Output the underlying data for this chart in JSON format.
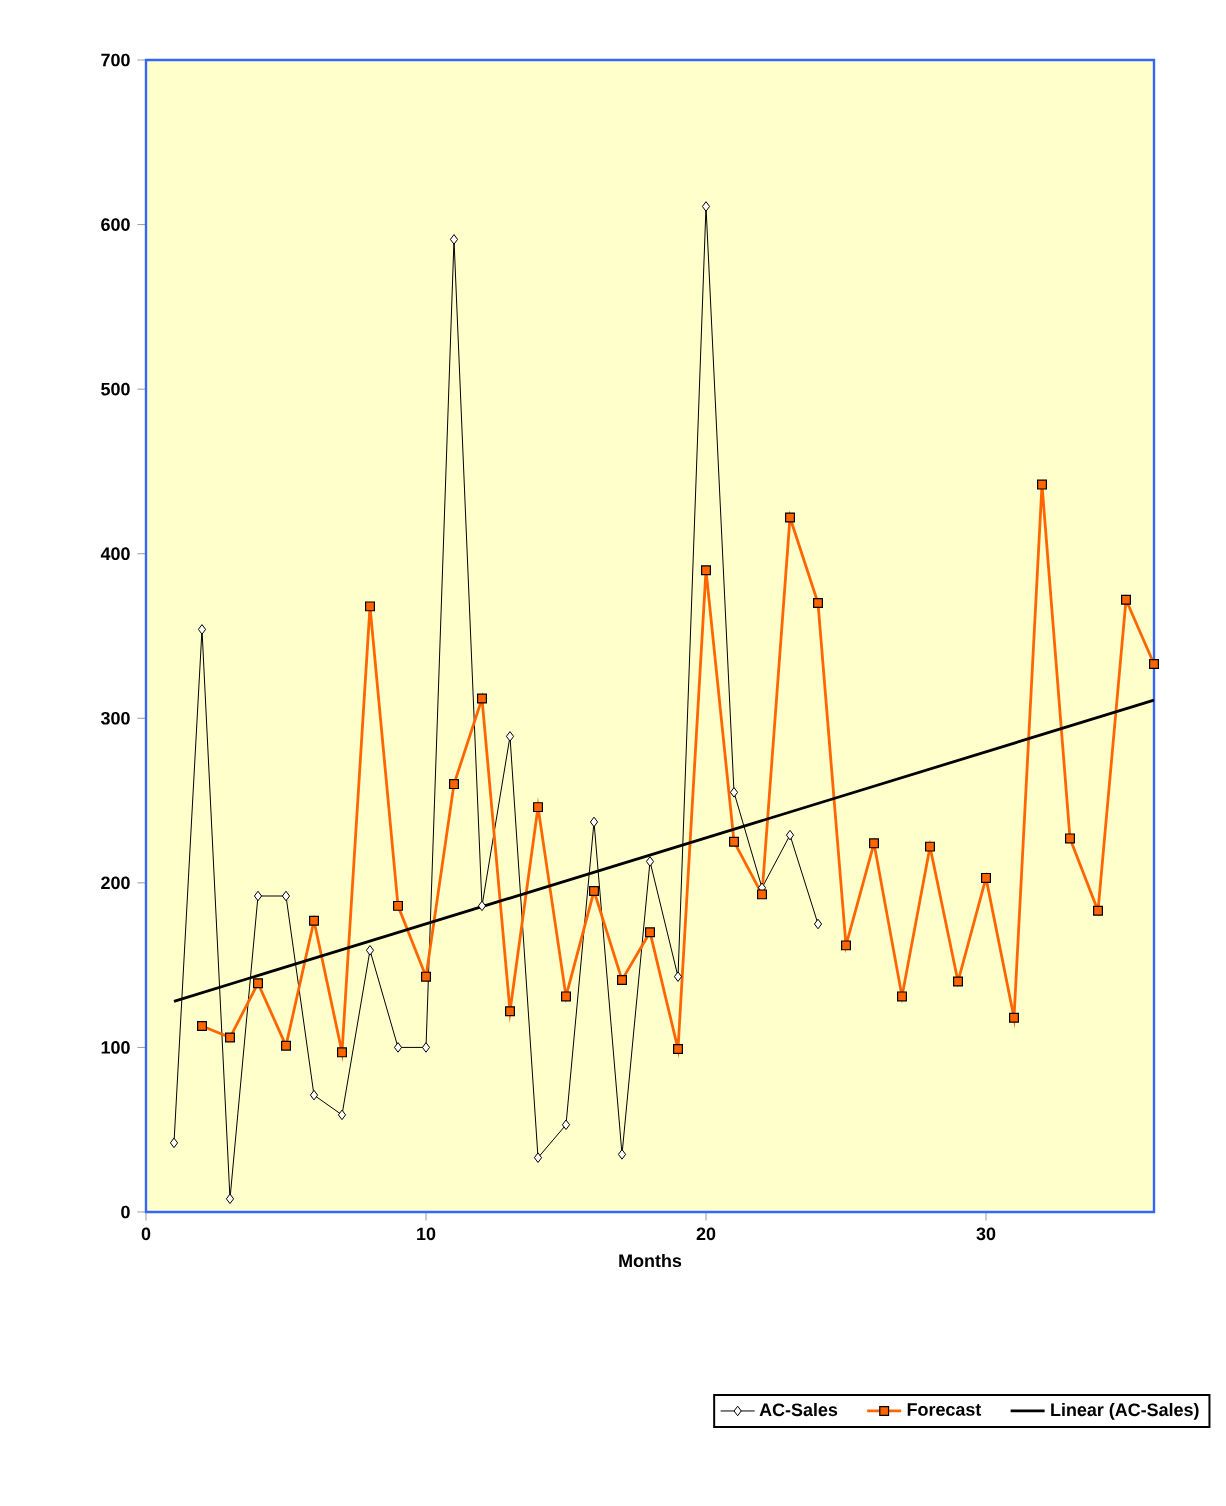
{
  "chart_data": {
    "type": "line",
    "xlabel": "Months",
    "xlim": [
      0,
      36
    ],
    "xticks": [
      0,
      10,
      20,
      30
    ],
    "ylim": [
      0,
      700
    ],
    "yticks": [
      0,
      100,
      200,
      300,
      400,
      500,
      600,
      700
    ],
    "grid": false,
    "legend": "bottom",
    "series": [
      {
        "name": "AC-Sales",
        "color": "#000000",
        "marker": "diamond",
        "x": [
          1,
          2,
          3,
          4,
          5,
          6,
          7,
          8,
          9,
          10,
          11,
          12,
          13,
          14,
          15,
          16,
          17,
          18,
          19,
          20,
          21,
          22,
          23,
          24
        ],
        "values": [
          42,
          354,
          8,
          192,
          192,
          71,
          59,
          159,
          100,
          100,
          591,
          186,
          289,
          33,
          53,
          237,
          35,
          213,
          143,
          611,
          255,
          197,
          229,
          175
        ]
      },
      {
        "name": "Forecast",
        "color": "#ff6600",
        "marker": "square",
        "x": [
          2,
          3,
          4,
          5,
          6,
          7,
          8,
          9,
          10,
          11,
          12,
          13,
          14,
          15,
          16,
          17,
          18,
          19,
          20,
          21,
          22,
          23,
          24,
          25,
          26,
          27,
          28,
          29,
          30,
          31,
          32,
          33,
          34,
          35,
          36
        ],
        "values": [
          113,
          106,
          139,
          101,
          177,
          97,
          368,
          186,
          143,
          260,
          312,
          122,
          246,
          131,
          195,
          141,
          170,
          99,
          390,
          225,
          193,
          422,
          370,
          162,
          224,
          131,
          222,
          140,
          203,
          118,
          442,
          227,
          183,
          372,
          333
        ]
      },
      {
        "name": "Linear (AC-Sales)",
        "color": "#000000",
        "marker": "none",
        "x": [
          1,
          36
        ],
        "values": [
          128,
          311
        ]
      }
    ]
  }
}
